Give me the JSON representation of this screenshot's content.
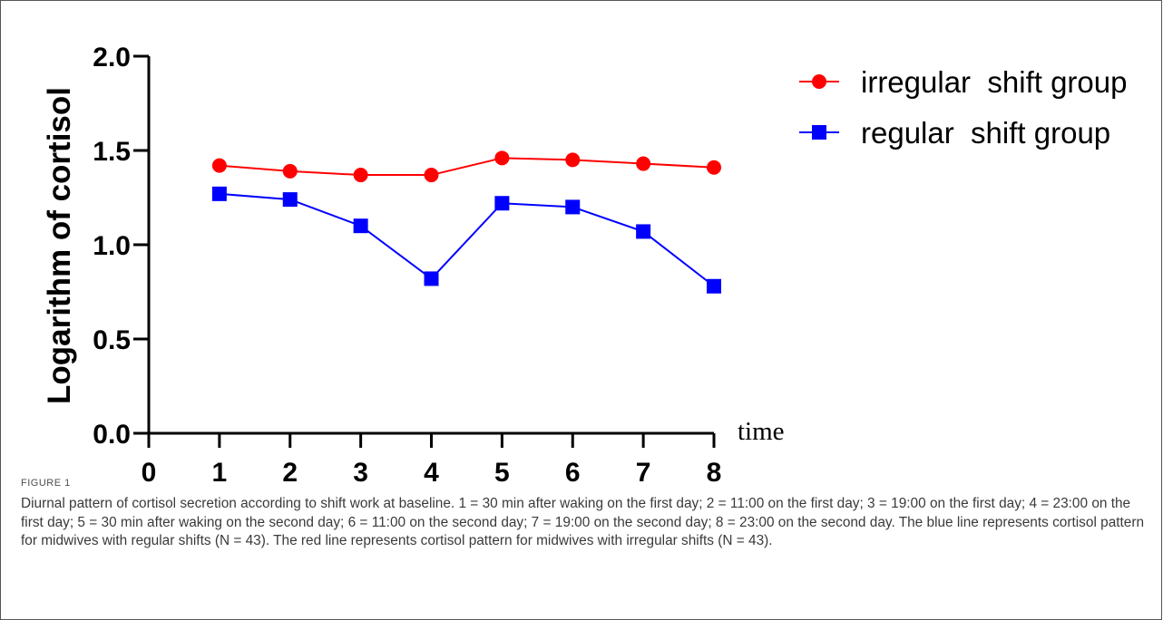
{
  "chart_data": {
    "type": "line",
    "ylabel": "Logarithm of cortisol",
    "xlabel": "time",
    "x_ticks": [
      "0",
      "1",
      "2",
      "3",
      "4",
      "5",
      "6",
      "7",
      "8"
    ],
    "y_ticks": [
      "0.0",
      "0.5",
      "1.0",
      "1.5",
      "2.0"
    ],
    "xlim": [
      0,
      8
    ],
    "ylim": [
      0,
      2.0
    ],
    "grid": false,
    "legend_position": "top-right",
    "x": [
      1,
      2,
      3,
      4,
      5,
      6,
      7,
      8
    ],
    "series": [
      {
        "name": "irregular  shift group",
        "color": "#ff0000",
        "marker": "circle",
        "values": [
          1.42,
          1.39,
          1.37,
          1.37,
          1.46,
          1.45,
          1.43,
          1.41
        ]
      },
      {
        "name": "regular  shift group",
        "color": "#0000ff",
        "marker": "square",
        "values": [
          1.27,
          1.24,
          1.1,
          0.82,
          1.22,
          1.2,
          1.07,
          0.78
        ]
      }
    ]
  },
  "caption": {
    "label": "FIGURE 1",
    "text": "Diurnal pattern of cortisol secretion according to shift work at baseline. 1 = 30 min after waking on the first day; 2 = 11:00 on the first day; 3 = 19:00 on the first day; 4 = 23:00 on the first day; 5 = 30 min after waking on the second day; 6 = 11:00 on the second day; 7 = 19:00 on the second day; 8 = 23:00 on the second day. The blue line represents cortisol pattern for midwives with regular shifts (N = 43). The red line represents cortisol pattern for midwives with irregular shifts (N = 43)."
  }
}
